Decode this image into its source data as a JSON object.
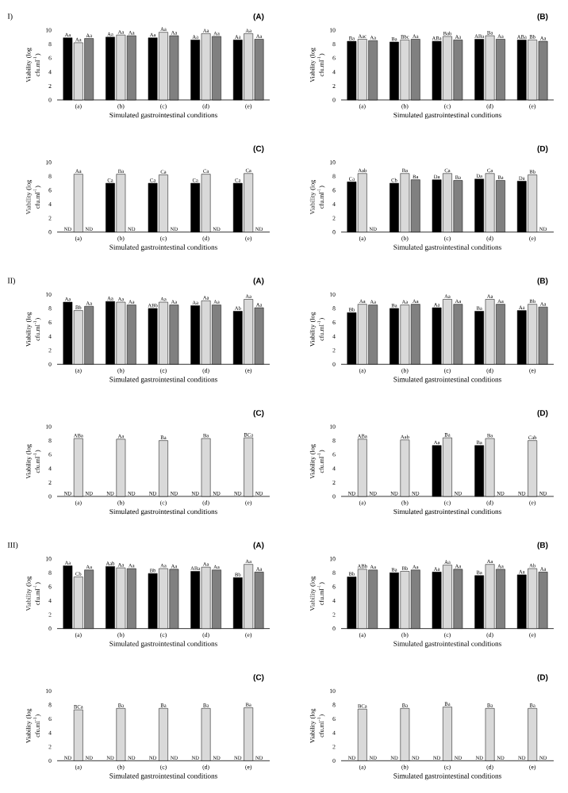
{
  "chart_data": [
    {
      "type": "bar",
      "title": "(A)",
      "annotations": [
        "I)"
      ],
      "xlabel": "Simulated gastrointestinal conditions",
      "ylabel": "Viability (log cfu.ml$^{-1}$)",
      "categories": [
        "(a)",
        "(b)",
        "(c)",
        "(d)",
        "(e)"
      ],
      "ylim": [
        0,
        10
      ],
      "yticks": [
        0,
        2,
        4,
        6,
        8,
        10
      ],
      "series": [
        {
          "color": "#000000",
          "values": [
            8.9,
            9.0,
            8.9,
            8.6,
            8.6
          ],
          "value_labels": [
            "Aa",
            "Aa",
            "Aa",
            "Aa",
            "Aa"
          ]
        },
        {
          "color": "#d9d9d9",
          "values": [
            8.2,
            9.3,
            9.7,
            9.5,
            9.5
          ],
          "value_labels": [
            "Aa",
            "Aa",
            "Aa",
            "Aa",
            "Aa"
          ]
        },
        {
          "color": "#808080",
          "values": [
            8.8,
            9.2,
            9.2,
            9.1,
            8.7
          ],
          "value_labels": [
            "Aa",
            "Aa",
            "Aa",
            "Aa",
            "Aa"
          ]
        }
      ]
    },
    {
      "type": "bar",
      "title": "(B)",
      "xlabel": "Simulated gastrointestinal conditions",
      "ylabel": "Viability (log cfu.ml$^{-1}$)",
      "categories": [
        "(a)",
        "(b)",
        "(c)",
        "(d)",
        "(e)"
      ],
      "ylim": [
        0,
        10
      ],
      "yticks": [
        0,
        2,
        4,
        6,
        8,
        10
      ],
      "series": [
        {
          "color": "#000000",
          "values": [
            8.4,
            8.3,
            8.4,
            8.7,
            8.6
          ],
          "value_labels": [
            "Ba",
            "Ba",
            "ABa",
            "ABa",
            "ABa"
          ]
        },
        {
          "color": "#d9d9d9",
          "values": [
            8.7,
            8.6,
            9.1,
            9.2,
            8.6
          ],
          "value_labels": [
            "Aac",
            "Bbc",
            "Bab",
            "Ba",
            "Bb"
          ]
        },
        {
          "color": "#808080",
          "values": [
            8.5,
            8.7,
            8.6,
            8.7,
            8.4
          ],
          "value_labels": [
            "Aa",
            "Aa",
            "Aa",
            "Aa",
            "Aa"
          ]
        }
      ]
    },
    {
      "type": "bar",
      "title": "(C)",
      "xlabel": "Simulated gastrointestinal conditions",
      "ylabel": "Viability (log cfu.ml$^{-1}$)",
      "categories": [
        "(a)",
        "(b)",
        "(c)",
        "(d)",
        "(e)"
      ],
      "ylim": [
        0,
        10
      ],
      "yticks": [
        0,
        2,
        4,
        6,
        8,
        10
      ],
      "series": [
        {
          "color": "#000000",
          "values": [
            null,
            7.0,
            7.0,
            7.0,
            7.0
          ],
          "value_labels": [
            "ND",
            "Ca",
            "Ca",
            "Ca",
            "Ca"
          ]
        },
        {
          "color": "#d9d9d9",
          "values": [
            8.3,
            8.3,
            8.2,
            8.3,
            8.4
          ],
          "value_labels": [
            "Aa",
            "Ba",
            "Ca",
            "Ca",
            "Ca"
          ]
        },
        {
          "color": "#808080",
          "values": [
            null,
            null,
            null,
            null,
            null
          ],
          "value_labels": [
            "ND",
            "ND",
            "ND",
            "ND",
            "ND"
          ]
        }
      ]
    },
    {
      "type": "bar",
      "title": "(D)",
      "xlabel": "Simulated gastrointestinal conditions",
      "ylabel": "Viability (log cfu.ml$^{-1}$)",
      "categories": [
        "(a)",
        "(b)",
        "(c)",
        "(d)",
        "(e)"
      ],
      "ylim": [
        0,
        10
      ],
      "yticks": [
        0,
        2,
        4,
        6,
        8,
        10
      ],
      "series": [
        {
          "color": "#000000",
          "values": [
            7.2,
            7.0,
            7.5,
            7.6,
            7.3
          ],
          "value_labels": [
            "Ca",
            "Cb",
            "Da",
            "Da",
            "Da"
          ]
        },
        {
          "color": "#d9d9d9",
          "values": [
            8.4,
            8.4,
            8.4,
            8.4,
            8.2
          ],
          "value_labels": [
            "Aab",
            "Ba",
            "Ca",
            "Ca",
            "Bb"
          ]
        },
        {
          "color": "#808080",
          "values": [
            null,
            7.5,
            7.4,
            7.4,
            null
          ],
          "value_labels": [
            "ND",
            "Ba",
            "Ba",
            "Ba",
            "ND"
          ]
        }
      ]
    },
    {
      "type": "bar",
      "title": "(A)",
      "annotations": [
        "II)"
      ],
      "xlabel": "Simulated gastrointestinal conditions",
      "ylabel": "Viability (log cfu.ml$^{-1}$)",
      "categories": [
        "(a)",
        "(b)",
        "(c)",
        "(d)",
        "(e)"
      ],
      "ylim": [
        0,
        10
      ],
      "yticks": [
        0,
        2,
        4,
        6,
        8,
        10
      ],
      "series": [
        {
          "color": "#000000",
          "values": [
            8.9,
            9.0,
            8.0,
            8.4,
            7.6
          ],
          "value_labels": [
            "Aa",
            "Aa",
            "ABb",
            "Aa",
            "Ab"
          ]
        },
        {
          "color": "#d9d9d9",
          "values": [
            7.7,
            8.9,
            8.9,
            9.1,
            9.3
          ],
          "value_labels": [
            "Bb",
            "Aa",
            "Aa",
            "Aa",
            "Aa"
          ]
        },
        {
          "color": "#808080",
          "values": [
            8.3,
            8.5,
            8.5,
            8.5,
            8.1
          ],
          "value_labels": [
            "Aa",
            "Aa",
            "Aa",
            "Aa",
            "Aa"
          ]
        }
      ]
    },
    {
      "type": "bar",
      "title": "(B)",
      "xlabel": "Simulated gastrointestinal conditions",
      "ylabel": "Viability (log cfu.ml$^{-1}$)",
      "categories": [
        "(a)",
        "(b)",
        "(c)",
        "(d)",
        "(e)"
      ],
      "ylim": [
        0,
        10
      ],
      "yticks": [
        0,
        2,
        4,
        6,
        8,
        10
      ],
      "series": [
        {
          "color": "#000000",
          "values": [
            7.4,
            8.0,
            8.1,
            7.6,
            7.7
          ],
          "value_labels": [
            "Bb",
            "Ba",
            "Aa",
            "Ba",
            "Aa"
          ]
        },
        {
          "color": "#d9d9d9",
          "values": [
            8.6,
            8.5,
            9.3,
            9.3,
            8.6
          ],
          "value_labels": [
            "Aa",
            "Aa",
            "Aa",
            "Aa",
            "Bb"
          ]
        },
        {
          "color": "#808080",
          "values": [
            8.5,
            8.6,
            8.6,
            8.6,
            8.2
          ],
          "value_labels": [
            "Aa",
            "Aa",
            "Aa",
            "Aa",
            "Aa"
          ]
        }
      ]
    },
    {
      "type": "bar",
      "title": "(C)",
      "xlabel": "Simulated gastrointestinal conditions",
      "ylabel": "Viability (log cfu.ml$^{-1}$)",
      "categories": [
        "(a)",
        "(b)",
        "(c)",
        "(d)",
        "(e)"
      ],
      "ylim": [
        0,
        10
      ],
      "yticks": [
        0,
        2,
        4,
        6,
        8,
        10
      ],
      "series": [
        {
          "color": "#000000",
          "values": [
            null,
            null,
            null,
            null,
            null
          ],
          "value_labels": [
            "ND",
            "ND",
            "ND",
            "ND",
            "ND"
          ]
        },
        {
          "color": "#d9d9d9",
          "values": [
            8.3,
            8.2,
            8.0,
            8.3,
            8.4
          ],
          "value_labels": [
            "ABa",
            "Aa",
            "Ba",
            "Ba",
            "BCa"
          ]
        },
        {
          "color": "#808080",
          "values": [
            null,
            null,
            null,
            null,
            null
          ],
          "value_labels": [
            "ND",
            "ND",
            "ND",
            "ND",
            "ND"
          ]
        }
      ]
    },
    {
      "type": "bar",
      "title": "(D)",
      "xlabel": "Simulated gastrointestinal conditions",
      "ylabel": "Viability (log cfu.ml$^{-1}$)",
      "categories": [
        "(a)",
        "(b)",
        "(c)",
        "(d)",
        "(e)"
      ],
      "ylim": [
        0,
        10
      ],
      "yticks": [
        0,
        2,
        4,
        6,
        8,
        10
      ],
      "series": [
        {
          "color": "#000000",
          "values": [
            null,
            null,
            7.3,
            7.3,
            null
          ],
          "value_labels": [
            "ND",
            "ND",
            "Aa",
            "Ba",
            "ND"
          ]
        },
        {
          "color": "#d9d9d9",
          "values": [
            8.2,
            8.1,
            8.4,
            8.3,
            8.0
          ],
          "value_labels": [
            "ABa",
            "Aab",
            "Ba",
            "Ba",
            "Cab"
          ]
        },
        {
          "color": "#808080",
          "values": [
            null,
            null,
            null,
            null,
            null
          ],
          "value_labels": [
            "ND",
            "ND",
            "ND",
            "ND",
            "ND"
          ]
        }
      ]
    },
    {
      "type": "bar",
      "title": "(A)",
      "annotations": [
        "III)"
      ],
      "xlabel": "Simulated gastrointestinal conditions",
      "ylabel": "Viability (log cfu.ml$^{-1}$)",
      "categories": [
        "(a)",
        "(b)",
        "(c)",
        "(d)",
        "(e)"
      ],
      "ylim": [
        0,
        10
      ],
      "yticks": [
        0,
        2,
        4,
        6,
        8,
        10
      ],
      "series": [
        {
          "color": "#000000",
          "values": [
            9.0,
            8.9,
            7.9,
            8.2,
            7.3
          ],
          "value_labels": [
            "Aa",
            "Aab",
            "Bb",
            "ABa",
            "Bb"
          ]
        },
        {
          "color": "#d9d9d9",
          "values": [
            7.4,
            8.7,
            8.6,
            8.8,
            9.2
          ],
          "value_labels": [
            "Cb",
            "Aa",
            "Aa",
            "Aa",
            "Aa"
          ]
        },
        {
          "color": "#808080",
          "values": [
            8.4,
            8.6,
            8.5,
            8.4,
            8.1
          ],
          "value_labels": [
            "Aa",
            "Aa",
            "Aa",
            "Aa",
            "Aa"
          ]
        }
      ]
    },
    {
      "type": "bar",
      "title": "(B)",
      "xlabel": "Simulated gastrointestinal conditions",
      "ylabel": "Viability (log cfu.ml$^{-1}$)",
      "categories": [
        "(a)",
        "(b)",
        "(c)",
        "(d)",
        "(e)"
      ],
      "ylim": [
        0,
        10
      ],
      "yticks": [
        0,
        2,
        4,
        6,
        8,
        10
      ],
      "series": [
        {
          "color": "#000000",
          "values": [
            7.4,
            8.0,
            8.1,
            7.6,
            7.7
          ],
          "value_labels": [
            "Bb",
            "Ba",
            "Aa",
            "Ba",
            "Aa"
          ]
        },
        {
          "color": "#d9d9d9",
          "values": [
            8.5,
            8.2,
            9.1,
            9.2,
            8.6
          ],
          "value_labels": [
            "ABb",
            "Bb",
            "Aa",
            "Aa",
            "Ab"
          ]
        },
        {
          "color": "#808080",
          "values": [
            8.4,
            8.4,
            8.5,
            8.5,
            8.1
          ],
          "value_labels": [
            "Aa",
            "Aa",
            "Aa",
            "Aa",
            "Aa"
          ]
        }
      ]
    },
    {
      "type": "bar",
      "title": "(C)",
      "xlabel": "Simulated gastrointestinal conditions",
      "ylabel": "Viability (log cfu.ml$^{-1}$)",
      "categories": [
        "(a)",
        "(b)",
        "(c)",
        "(d)",
        "(e)"
      ],
      "ylim": [
        0,
        10
      ],
      "yticks": [
        0,
        2,
        4,
        6,
        8,
        10
      ],
      "series": [
        {
          "color": "#000000",
          "values": [
            null,
            null,
            null,
            null,
            null
          ],
          "value_labels": [
            "ND",
            "ND",
            "ND",
            "ND",
            "ND"
          ]
        },
        {
          "color": "#d9d9d9",
          "values": [
            7.3,
            7.5,
            7.5,
            7.5,
            7.6
          ],
          "value_labels": [
            "BCa",
            "Ba",
            "Ba",
            "Ba",
            "Ba"
          ]
        },
        {
          "color": "#808080",
          "values": [
            null,
            null,
            null,
            null,
            null
          ],
          "value_labels": [
            "ND",
            "ND",
            "ND",
            "ND",
            "ND"
          ]
        }
      ]
    },
    {
      "type": "bar",
      "title": "(D)",
      "xlabel": "Simulated gastrointestinal conditions",
      "ylabel": "Viability (log cfu.ml$^{-1}$)",
      "categories": [
        "(a)",
        "(b)",
        "(c)",
        "(d)",
        "(e)"
      ],
      "ylim": [
        0,
        10
      ],
      "yticks": [
        0,
        2,
        4,
        6,
        8,
        10
      ],
      "series": [
        {
          "color": "#000000",
          "values": [
            null,
            null,
            null,
            null,
            null
          ],
          "value_labels": [
            "ND",
            "ND",
            "ND",
            "ND",
            "ND"
          ]
        },
        {
          "color": "#d9d9d9",
          "values": [
            7.4,
            7.5,
            7.7,
            7.5,
            7.5
          ],
          "value_labels": [
            "BCa",
            "Ba",
            "Ba",
            "Ba",
            "Ba"
          ]
        },
        {
          "color": "#808080",
          "values": [
            null,
            null,
            null,
            null,
            null
          ],
          "value_labels": [
            "ND",
            "ND",
            "ND",
            "ND",
            "ND"
          ]
        }
      ]
    }
  ]
}
